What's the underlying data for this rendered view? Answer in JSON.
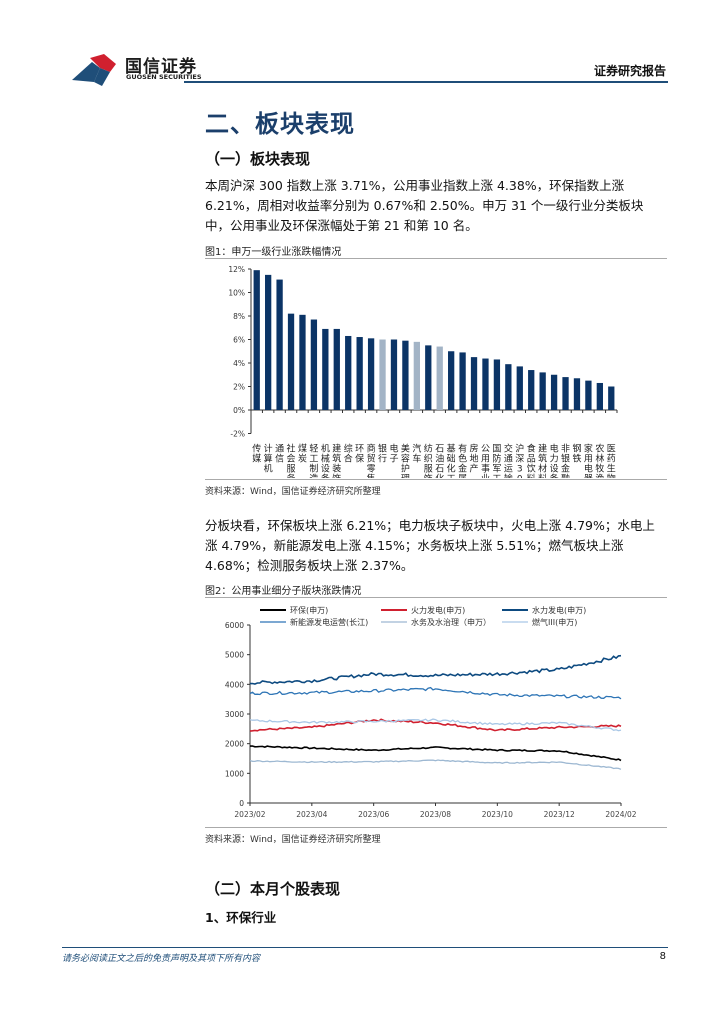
{
  "header": {
    "logo_cn": "国信证券",
    "logo_en": "GUOSEN SECURITIES",
    "report_type": "证券研究报告"
  },
  "section": {
    "title": "二、板块表现",
    "sub1": "（一）板块表现",
    "para1": "本周沪深 300 指数上涨 3.71%，公用事业指数上涨 4.38%，环保指数上涨 6.21%，周相对收益率分别为 0.67%和 2.50%。申万 31 个一级行业分类板块中，公用事业及环保涨幅处于第 21 和第 10 名。",
    "fig1_caption": "图1：申万一级行业涨跌幅情况",
    "fig1_source": "资料来源：Wind，国信证券经济研究所整理",
    "para2": "分板块看，环保板块上涨 6.21%；电力板块子板块中，火电上涨 4.79%；水电上涨 4.79%，新能源发电上涨 4.15%；水务板块上涨 5.51%；燃气板块上涨 4.68%；检测服务板块上涨 2.37%。",
    "fig2_caption": "图2：公用事业细分子版块涨跌情况",
    "fig2_source": "资料来源：Wind，国信证券经济研究所整理",
    "sub2": "（二）本月个股表现",
    "sub3": "1、环保行业"
  },
  "footer": {
    "disclaimer": "请务必阅读正文之后的免责声明及其项下所有内容",
    "page": "8"
  },
  "colors": {
    "brand_blue": "#1f4e79",
    "bar_dark": "#0b3466",
    "bar_light": "#a3b4c6",
    "brand_red": "#d0202f"
  },
  "chart_data": [
    {
      "type": "bar",
      "title": "申万一级行业涨跌幅情况",
      "xlabel": "",
      "ylabel": "",
      "ylim": [
        -2,
        12
      ],
      "yticks": [
        "-2%",
        "0%",
        "2%",
        "4%",
        "6%",
        "8%",
        "10%",
        "12%"
      ],
      "grid": false,
      "categories": [
        "传媒",
        "计算机",
        "通信",
        "社会服务",
        "煤炭",
        "轻工制造",
        "机械设备",
        "建筑装饰",
        "综合",
        "环保",
        "商贸零售",
        "银行",
        "电子",
        "美容护理",
        "汽车",
        "纺织服饰",
        "石油石化",
        "基础化工",
        "有色金属",
        "房地产",
        "公用事业",
        "国防军工",
        "交通运输",
        "沪深300",
        "食品饮料",
        "建筑材料",
        "电力设备",
        "非银金融",
        "钢铁",
        "家用电器",
        "农林牧渔",
        "医药生物"
      ],
      "values": [
        11.9,
        11.5,
        11.1,
        8.2,
        8.1,
        7.7,
        6.9,
        6.9,
        6.3,
        6.21,
        6.1,
        6.0,
        6.0,
        5.9,
        5.8,
        5.5,
        5.4,
        5.0,
        4.9,
        4.5,
        4.38,
        4.3,
        3.9,
        3.71,
        3.4,
        3.2,
        3.0,
        2.8,
        2.7,
        2.5,
        2.3,
        2.0
      ],
      "highlight": [
        "银行",
        "汽车",
        "石油石化"
      ]
    },
    {
      "type": "line",
      "title": "公用事业细分子版块涨跌情况",
      "ylim": [
        0,
        6000
      ],
      "yticks": [
        "0",
        "1000",
        "2000",
        "3000",
        "4000",
        "5000",
        "6000"
      ],
      "x": [
        "2023/02",
        "2023/04",
        "2023/06",
        "2023/08",
        "2023/10",
        "2023/12",
        "2024/02"
      ],
      "legend_position": "top",
      "series": [
        {
          "name": "环保(申万)",
          "color": "#000000",
          "values": [
            1920,
            1850,
            1780,
            1870,
            1780,
            1760,
            1450
          ]
        },
        {
          "name": "火力发电(申万)",
          "color": "#d0202f",
          "values": [
            2450,
            2550,
            2800,
            2700,
            2450,
            2550,
            2600
          ]
        },
        {
          "name": "水力发电(申万)",
          "color": "#0d4a80",
          "values": [
            4050,
            4120,
            4350,
            4300,
            4350,
            4500,
            4950
          ]
        },
        {
          "name": "新能源发电运营(长江)",
          "color": "#2e75b6",
          "values": [
            3700,
            3720,
            3780,
            3850,
            3650,
            3600,
            3550
          ]
        },
        {
          "name": "水务及水治理（申万）",
          "color": "#9db8d2",
          "values": [
            1420,
            1380,
            1390,
            1440,
            1350,
            1380,
            1150
          ]
        },
        {
          "name": "燃气III(申万)",
          "color": "#a9c7e6",
          "values": [
            2780,
            2720,
            2750,
            2800,
            2650,
            2700,
            2450
          ]
        }
      ]
    }
  ]
}
